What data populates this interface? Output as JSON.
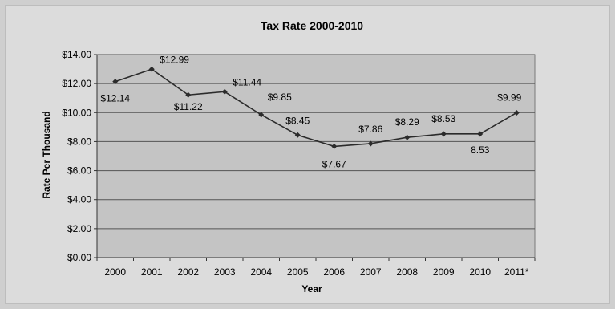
{
  "chart_data": {
    "type": "line",
    "title": "Tax Rate 2000-2010",
    "xlabel": "Year",
    "ylabel": "Rate Per Thousand",
    "categories": [
      "2000",
      "2001",
      "2002",
      "2003",
      "2004",
      "2005",
      "2006",
      "2007",
      "2008",
      "2009",
      "2010",
      "2011*"
    ],
    "series": [
      {
        "values": [
          12.14,
          12.99,
          11.22,
          11.44,
          9.85,
          8.45,
          7.67,
          7.86,
          8.29,
          8.53,
          8.53,
          9.99
        ]
      }
    ],
    "data_labels": [
      "$12.14",
      "$12.99",
      "$11.22",
      "$11.44",
      "$9.85",
      "$8.45",
      "$7.67",
      "$7.86",
      "$8.29",
      "$8.53",
      "8.53",
      "$9.99"
    ],
    "ylim": [
      0,
      14
    ],
    "yticks": [
      0,
      2,
      4,
      6,
      8,
      10,
      12,
      14
    ],
    "ytick_labels": [
      "$0.00",
      "$2.00",
      "$4.00",
      "$6.00",
      "$8.00",
      "$10.00",
      "$12.00",
      "$14.00"
    ],
    "grid": true,
    "colors": {
      "plot_bg": "#c4c4c4",
      "line": "#2b2b2b",
      "grid": "#555555"
    }
  }
}
